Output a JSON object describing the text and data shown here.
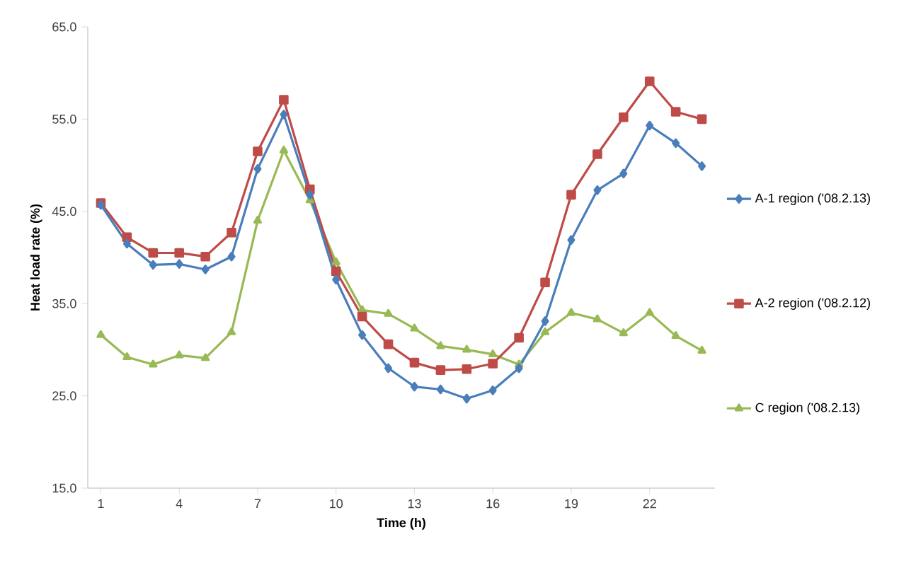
{
  "chart_data": {
    "type": "line",
    "xlabel": "Time (h)",
    "ylabel": "Heat load rate (%)",
    "x": [
      1,
      2,
      3,
      4,
      5,
      6,
      7,
      8,
      9,
      10,
      11,
      12,
      13,
      14,
      15,
      16,
      17,
      18,
      19,
      20,
      21,
      22,
      23,
      24
    ],
    "xlim": [
      0.5,
      24.5
    ],
    "xticks": [
      1,
      4,
      7,
      10,
      13,
      16,
      19,
      22
    ],
    "ylim": [
      15,
      65
    ],
    "yticks": [
      {
        "value": 15,
        "label": "15.0"
      },
      {
        "value": 25,
        "label": "25.0"
      },
      {
        "value": 35,
        "label": "35.0"
      },
      {
        "value": 45,
        "label": "45.0"
      },
      {
        "value": 55,
        "label": "55.0"
      },
      {
        "value": 65,
        "label": "65.0"
      }
    ],
    "legend": "right",
    "grid": false,
    "line_style": "solid",
    "series": [
      {
        "name": "A-1 region ('08.2.13)",
        "color": "#4a7ebb",
        "marker": "diamond",
        "values": [
          45.7,
          41.5,
          39.2,
          39.3,
          38.7,
          40.1,
          49.6,
          55.5,
          46.8,
          37.6,
          31.6,
          28.0,
          26.0,
          25.7,
          24.7,
          25.6,
          28.0,
          33.1,
          41.9,
          47.3,
          49.1,
          54.3,
          52.4,
          49.9
        ]
      },
      {
        "name": "A-2 region ('08.2.12)",
        "color": "#be4b48",
        "marker": "square",
        "values": [
          45.9,
          42.2,
          40.5,
          40.5,
          40.1,
          42.7,
          51.5,
          57.1,
          47.4,
          38.5,
          33.6,
          30.6,
          28.6,
          27.8,
          27.9,
          28.5,
          31.3,
          37.3,
          46.8,
          51.2,
          55.2,
          59.1,
          55.8,
          55.0
        ]
      },
      {
        "name": "C region ('08.2.13)",
        "color": "#98b954",
        "marker": "triangle",
        "values": [
          31.6,
          29.2,
          28.4,
          29.4,
          29.1,
          31.9,
          44.0,
          51.6,
          46.2,
          39.5,
          34.3,
          33.9,
          32.3,
          30.4,
          30.0,
          29.5,
          28.4,
          31.9,
          34.0,
          33.3,
          31.8,
          34.0,
          31.5,
          29.9
        ]
      }
    ]
  }
}
